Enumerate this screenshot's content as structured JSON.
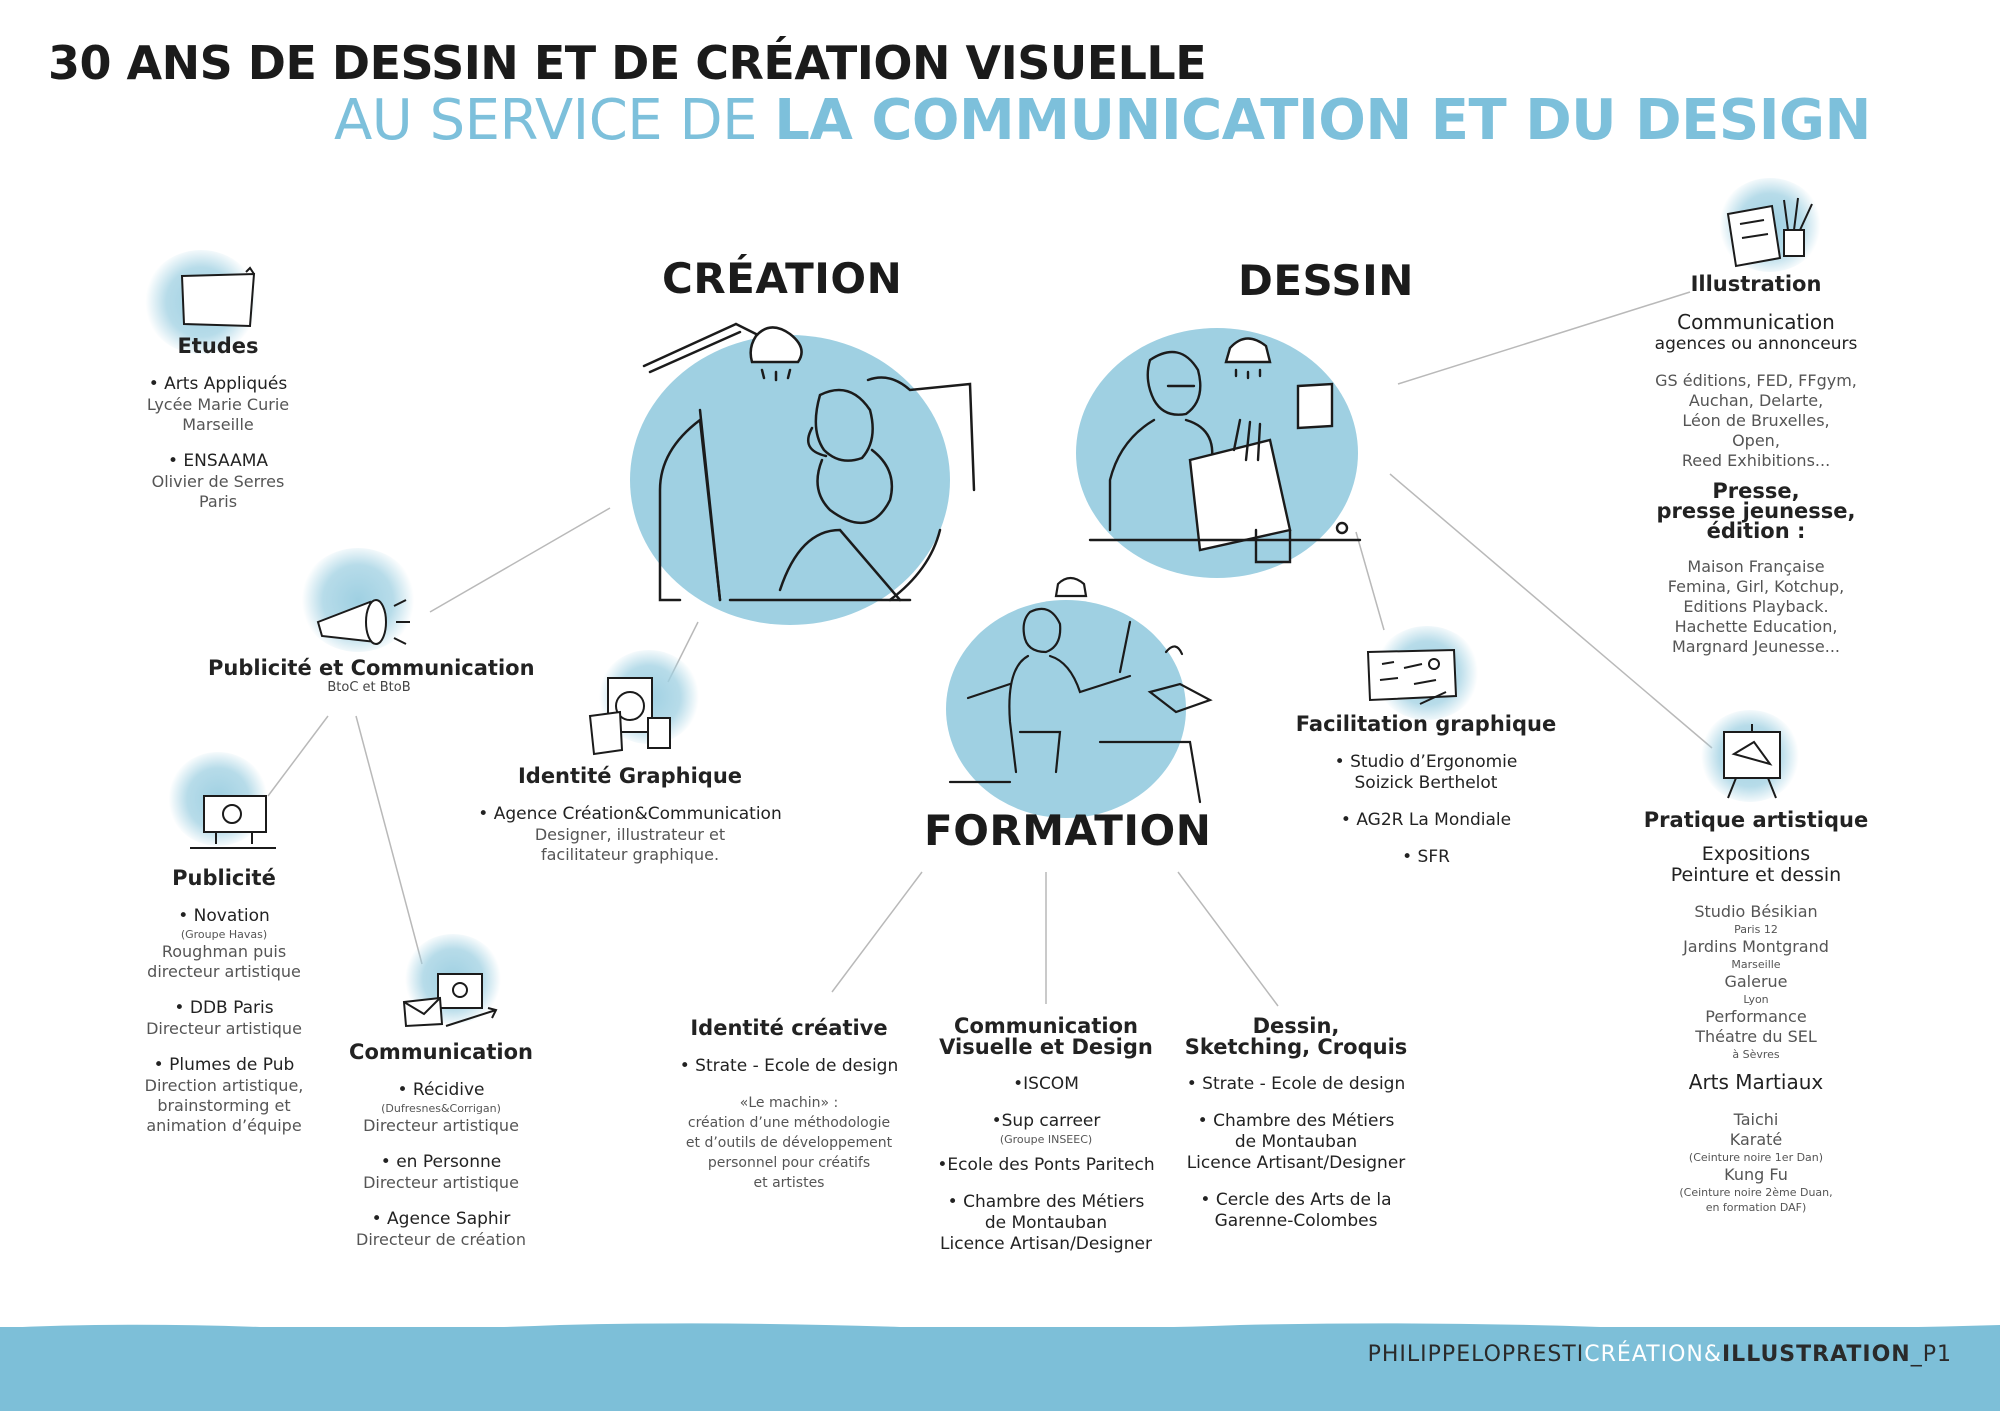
{
  "header": {
    "line1": "30 ANS DE DESSIN ET DE CRÉATION VISUELLE",
    "line2_light": "AU SERVICE DE ",
    "line2_bold": "LA COMMUNICATION ET DU DESIGN"
  },
  "hubs": {
    "creation": "CRÉATION",
    "dessin": "DESSIN",
    "formation": "FORMATION"
  },
  "etudes": {
    "title": "Etudes",
    "b1": "• Arts Appliqués",
    "b1_l1": "Lycée Marie Curie",
    "b1_l2": "Marseille",
    "b2": "• ENSAAMA",
    "b2_l1": "Olivier de Serres",
    "b2_l2": "Paris"
  },
  "pubcom": {
    "title": "Publicité et Communication",
    "sub": "BtoC et BtoB"
  },
  "identite_graphique": {
    "title": "Identité Graphique",
    "b1": "• Agence Création&Communication",
    "l1": "Designer, illustrateur et",
    "l2": "facilitateur graphique."
  },
  "publicite": {
    "title": "Publicité",
    "b1": "• Novation",
    "b1_mini": "(Groupe Havas)",
    "b1_l1": "Roughman puis",
    "b1_l2": "directeur artistique",
    "b2": "• DDB Paris",
    "b2_l1": "Directeur artistique",
    "b3": "• Plumes de Pub",
    "b3_l1": "Direction artistique,",
    "b3_l2": "brainstorming et",
    "b3_l3": "animation d’équipe"
  },
  "communication": {
    "title": "Communication",
    "b1": "• Récidive",
    "b1_mini": "(Dufresnes&Corrigan)",
    "b1_l1": "Directeur artistique",
    "b2": "• en Personne",
    "b2_l1": "Directeur artistique",
    "b3": "• Agence Saphir",
    "b3_l1": "Directeur de création"
  },
  "identite_creative": {
    "title": "Identité créative",
    "b1": "• Strate - Ecole de design",
    "q1": "«Le machin» :",
    "q2": "création d’une méthodologie",
    "q3": "et d’outils de développement",
    "q4": "personnel pour créatifs",
    "q5": "et artistes"
  },
  "cvd": {
    "title1": "Communication",
    "title2": "Visuelle et Design",
    "b1": "•ISCOM",
    "b2": "•Sup carreer",
    "b2_mini": "(Groupe INSEEC)",
    "b3": "•Ecole des Ponts Paritech",
    "b4": "• Chambre des Métiers",
    "b4_l1": "de Montauban",
    "b4_l2": "Licence Artisan/Designer"
  },
  "sketching": {
    "title1": "Dessin,",
    "title2": "Sketching, Croquis",
    "b1": "• Strate - Ecole de design",
    "b2": "• Chambre des Métiers",
    "b2_l1": "de Montauban",
    "b2_l2": "Licence Artisant/Designer",
    "b3": "• Cercle des Arts de la",
    "b3_l1": "Garenne-Colombes"
  },
  "facilitation": {
    "title": "Facilitation graphique",
    "b1": "• Studio d’Ergonomie",
    "b1_l1": "Soizick Berthelot",
    "b2": "• AG2R La Mondiale",
    "b3": "• SFR"
  },
  "illustration": {
    "title": "Illustration",
    "sub1": "Communication",
    "sub1b": "agences ou annonceurs",
    "clients_l1": "GS éditions, FED, FFgym,",
    "clients_l2": "Auchan, Delarte,",
    "clients_l3": "Léon de Bruxelles,",
    "clients_l4": "Open,",
    "clients_l5": "Reed Exhibitions...",
    "sub2_l1": "Presse,",
    "sub2_l2": "presse jeunesse,",
    "sub2_l3": "édition :",
    "press_l1": "Maison Française",
    "press_l2": "Femina, Girl, Kotchup,",
    "press_l3": "Editions Playback.",
    "press_l4": "Hachette Education,",
    "press_l5": "Margnard Jeunesse..."
  },
  "pratique": {
    "title": "Pratique artistique",
    "sub1_l1": "Expositions",
    "sub1_l2": "Peinture et dessin",
    "e1": "Studio Bésikian",
    "e1_mini": "Paris 12",
    "e2": "Jardins Montgrand",
    "e2_mini": "Marseille",
    "e3": "Galerue",
    "e3_mini": "Lyon",
    "e4_l1": "Performance",
    "e4_l2": "Théatre du SEL",
    "e4_mini": "à Sèvres",
    "sub2": "Arts Martiaux",
    "m1": "Taichi",
    "m2": "Karaté",
    "m2_mini": "(Ceinture noire 1er Dan)",
    "m3": "Kung Fu",
    "m3_mini1": "(Ceinture noire 2ème Duan,",
    "m3_mini2": "en formation DAF)"
  },
  "footer": {
    "name": "PHILIPPELOPRESTI",
    "creation": "CRÉATION",
    "amp": "&",
    "illustration": "ILLUSTRATION",
    "page": "_P1"
  },
  "colors": {
    "accent": "#7dc0db",
    "blob": "#9fd0e2",
    "footer_band": "#7dbfd8",
    "text": "#1e1e1e"
  }
}
